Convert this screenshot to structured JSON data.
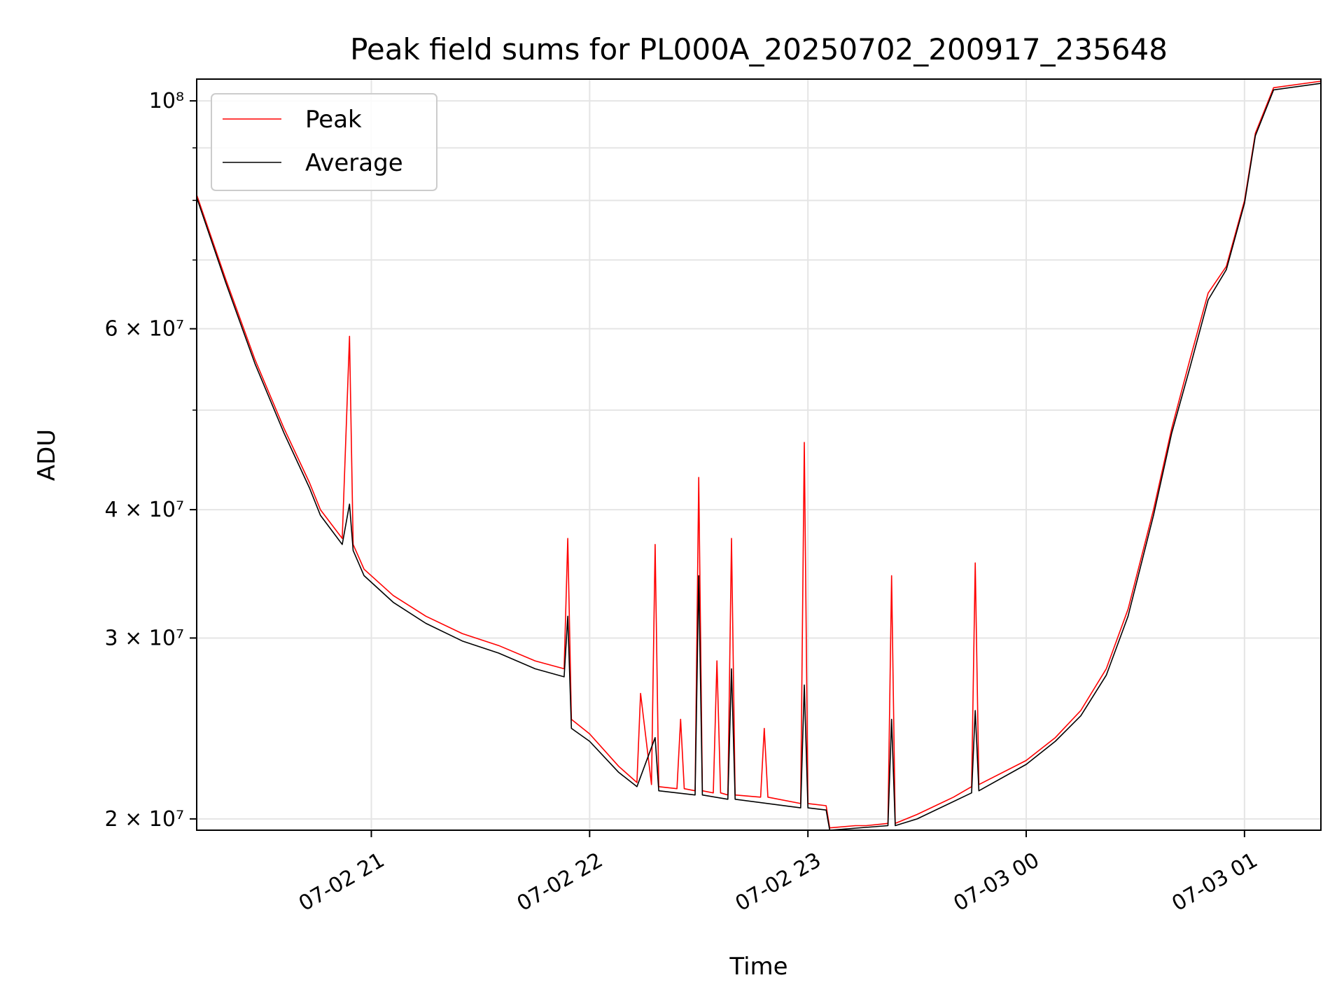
{
  "chart_data": {
    "type": "line",
    "title": "Peak field sums for PL000A_20250702_200917_235648",
    "xlabel": "Time",
    "ylabel": "ADU",
    "y_scale": "log",
    "ylim": [
      19500000,
      105000000
    ],
    "xlim": [
      "2025-07-02 20:12",
      "2025-07-03 01:21"
    ],
    "grid": true,
    "legend_position": "top-left",
    "x_ticks": [
      {
        "value": "2025-07-02 21:00",
        "label": "07-02 21"
      },
      {
        "value": "2025-07-02 22:00",
        "label": "07-02 22"
      },
      {
        "value": "2025-07-02 23:00",
        "label": "07-02 23"
      },
      {
        "value": "2025-07-03 00:00",
        "label": "07-03 00"
      },
      {
        "value": "2025-07-03 01:00",
        "label": "07-03 01"
      }
    ],
    "y_ticks": [
      {
        "value": 20000000,
        "label": "2 × 10⁷"
      },
      {
        "value": 30000000,
        "label": "3 × 10⁷"
      },
      {
        "value": 40000000,
        "label": "4 × 10⁷"
      },
      {
        "value": 60000000,
        "label": "6 × 10⁷"
      },
      {
        "value": 100000000,
        "label": "10⁸"
      }
    ],
    "y_minor_ticks": [
      50000000,
      70000000,
      80000000,
      90000000
    ],
    "series": [
      {
        "name": "Peak",
        "color": "#ff0000",
        "points": [
          [
            "2025-07-02 20:12",
            81000000
          ],
          [
            "2025-07-02 20:20",
            67000000
          ],
          [
            "2025-07-02 20:28",
            56000000
          ],
          [
            "2025-07-02 20:36",
            48000000
          ],
          [
            "2025-07-02 20:43",
            42500000
          ],
          [
            "2025-07-02 20:46",
            40000000
          ],
          [
            "2025-07-02 20:52",
            37500000
          ],
          [
            "2025-07-02 20:54",
            59000000
          ],
          [
            "2025-07-02 20:55",
            37000000
          ],
          [
            "2025-07-02 20:58",
            35000000
          ],
          [
            "2025-07-02 21:06",
            33000000
          ],
          [
            "2025-07-02 21:15",
            31500000
          ],
          [
            "2025-07-02 21:25",
            30300000
          ],
          [
            "2025-07-02 21:35",
            29500000
          ],
          [
            "2025-07-02 21:45",
            28500000
          ],
          [
            "2025-07-02 21:53",
            28000000
          ],
          [
            "2025-07-02 21:54",
            37500000
          ],
          [
            "2025-07-02 21:55",
            25000000
          ],
          [
            "2025-07-02 22:00",
            24200000
          ],
          [
            "2025-07-02 22:08",
            22500000
          ],
          [
            "2025-07-02 22:13",
            21700000
          ],
          [
            "2025-07-02 22:14",
            26500000
          ],
          [
            "2025-07-02 22:17",
            21600000
          ],
          [
            "2025-07-02 22:18",
            37000000
          ],
          [
            "2025-07-02 22:19",
            21500000
          ],
          [
            "2025-07-02 22:24",
            21400000
          ],
          [
            "2025-07-02 22:25",
            25000000
          ],
          [
            "2025-07-02 22:26",
            21400000
          ],
          [
            "2025-07-02 22:29",
            21300000
          ],
          [
            "2025-07-02 22:30",
            43000000
          ],
          [
            "2025-07-02 22:31",
            21300000
          ],
          [
            "2025-07-02 22:34",
            21200000
          ],
          [
            "2025-07-02 22:35",
            28500000
          ],
          [
            "2025-07-02 22:36",
            21200000
          ],
          [
            "2025-07-02 22:38",
            21100000
          ],
          [
            "2025-07-02 22:39",
            37500000
          ],
          [
            "2025-07-02 22:40",
            21100000
          ],
          [
            "2025-07-02 22:47",
            21000000
          ],
          [
            "2025-07-02 22:48",
            24500000
          ],
          [
            "2025-07-02 22:49",
            21000000
          ],
          [
            "2025-07-02 22:58",
            20700000
          ],
          [
            "2025-07-02 22:59",
            46500000
          ],
          [
            "2025-07-02 23:00",
            20700000
          ],
          [
            "2025-07-02 23:05",
            20600000
          ],
          [
            "2025-07-02 23:06",
            19600000
          ],
          [
            "2025-07-02 23:13",
            19700000
          ],
          [
            "2025-07-02 23:16",
            19700000
          ],
          [
            "2025-07-02 23:22",
            19800000
          ],
          [
            "2025-07-02 23:23",
            34500000
          ],
          [
            "2025-07-02 23:24",
            19800000
          ],
          [
            "2025-07-02 23:30",
            20200000
          ],
          [
            "2025-07-02 23:40",
            21000000
          ],
          [
            "2025-07-02 23:45",
            21500000
          ],
          [
            "2025-07-02 23:46",
            35500000
          ],
          [
            "2025-07-02 23:47",
            21600000
          ],
          [
            "2025-07-03 00:00",
            22800000
          ],
          [
            "2025-07-03 00:08",
            24000000
          ],
          [
            "2025-07-03 00:15",
            25500000
          ],
          [
            "2025-07-03 00:22",
            28000000
          ],
          [
            "2025-07-03 00:28",
            32000000
          ],
          [
            "2025-07-03 00:35",
            40000000
          ],
          [
            "2025-07-03 00:40",
            48000000
          ],
          [
            "2025-07-03 00:45",
            56000000
          ],
          [
            "2025-07-03 00:50",
            65000000
          ],
          [
            "2025-07-03 00:55",
            69000000
          ],
          [
            "2025-07-03 01:00",
            80000000
          ],
          [
            "2025-07-03 01:03",
            93000000
          ],
          [
            "2025-07-03 01:08",
            103000000
          ],
          [
            "2025-07-03 01:21",
            104500000
          ]
        ]
      },
      {
        "name": "Average",
        "color": "#000000",
        "points": [
          [
            "2025-07-02 20:12",
            80500000
          ],
          [
            "2025-07-02 20:20",
            66500000
          ],
          [
            "2025-07-02 20:28",
            55500000
          ],
          [
            "2025-07-02 20:36",
            47500000
          ],
          [
            "2025-07-02 20:43",
            42000000
          ],
          [
            "2025-07-02 20:46",
            39500000
          ],
          [
            "2025-07-02 20:52",
            37000000
          ],
          [
            "2025-07-02 20:54",
            40500000
          ],
          [
            "2025-07-02 20:55",
            36500000
          ],
          [
            "2025-07-02 20:58",
            34500000
          ],
          [
            "2025-07-02 21:06",
            32500000
          ],
          [
            "2025-07-02 21:15",
            31000000
          ],
          [
            "2025-07-02 21:25",
            29800000
          ],
          [
            "2025-07-02 21:35",
            29000000
          ],
          [
            "2025-07-02 21:45",
            28000000
          ],
          [
            "2025-07-02 21:53",
            27500000
          ],
          [
            "2025-07-02 21:54",
            31500000
          ],
          [
            "2025-07-02 21:55",
            24500000
          ],
          [
            "2025-07-02 22:00",
            23800000
          ],
          [
            "2025-07-02 22:08",
            22200000
          ],
          [
            "2025-07-02 22:13",
            21500000
          ],
          [
            "2025-07-02 22:18",
            24000000
          ],
          [
            "2025-07-02 22:19",
            21300000
          ],
          [
            "2025-07-02 22:29",
            21100000
          ],
          [
            "2025-07-02 22:30",
            34500000
          ],
          [
            "2025-07-02 22:31",
            21100000
          ],
          [
            "2025-07-02 22:38",
            20900000
          ],
          [
            "2025-07-02 22:39",
            28000000
          ],
          [
            "2025-07-02 22:40",
            20900000
          ],
          [
            "2025-07-02 22:58",
            20500000
          ],
          [
            "2025-07-02 22:59",
            27000000
          ],
          [
            "2025-07-02 23:00",
            20500000
          ],
          [
            "2025-07-02 23:05",
            20400000
          ],
          [
            "2025-07-02 23:06",
            19500000
          ],
          [
            "2025-07-02 23:22",
            19700000
          ],
          [
            "2025-07-02 23:23",
            25000000
          ],
          [
            "2025-07-02 23:24",
            19700000
          ],
          [
            "2025-07-02 23:30",
            20000000
          ],
          [
            "2025-07-02 23:45",
            21200000
          ],
          [
            "2025-07-02 23:46",
            25500000
          ],
          [
            "2025-07-02 23:47",
            21300000
          ],
          [
            "2025-07-03 00:00",
            22600000
          ],
          [
            "2025-07-03 00:08",
            23800000
          ],
          [
            "2025-07-03 00:15",
            25200000
          ],
          [
            "2025-07-03 00:22",
            27600000
          ],
          [
            "2025-07-03 00:28",
            31500000
          ],
          [
            "2025-07-03 00:35",
            39500000
          ],
          [
            "2025-07-03 00:40",
            47500000
          ],
          [
            "2025-07-03 00:45",
            55000000
          ],
          [
            "2025-07-03 00:50",
            64000000
          ],
          [
            "2025-07-03 00:55",
            68500000
          ],
          [
            "2025-07-03 01:00",
            79500000
          ],
          [
            "2025-07-03 01:03",
            92500000
          ],
          [
            "2025-07-03 01:08",
            102500000
          ],
          [
            "2025-07-03 01:21",
            104000000
          ]
        ]
      }
    ]
  }
}
